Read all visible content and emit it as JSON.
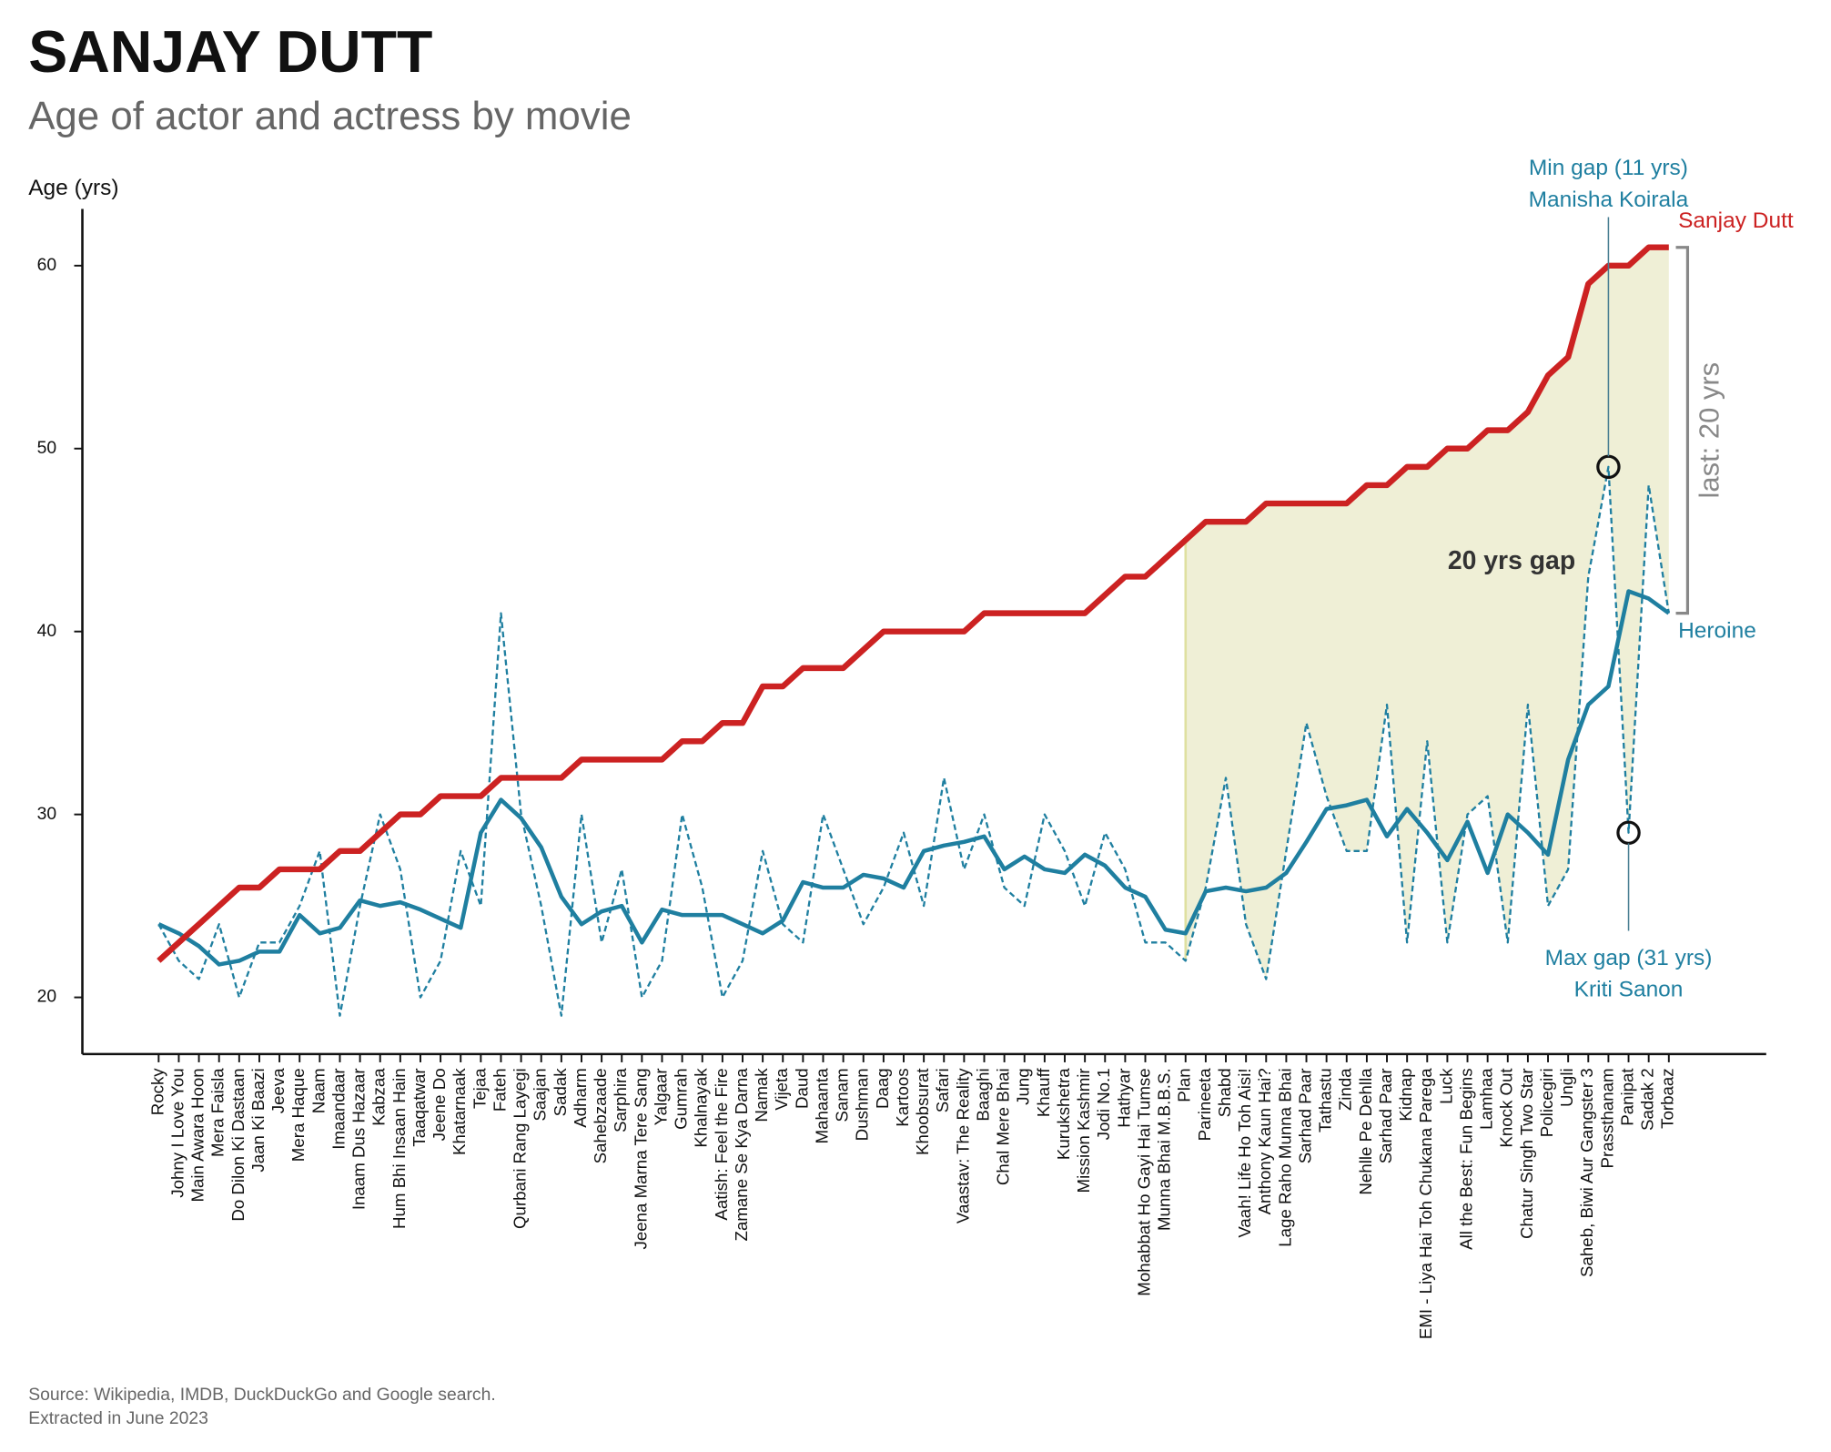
{
  "chart_data": {
    "type": "line",
    "title": "SANJAY DUTT",
    "subtitle": "Age of actor and actress by movie",
    "y_label": "Age (yrs)",
    "source": [
      "Source: Wikipedia, IMDB, DuckDuckGo and Google search.",
      "Extracted in June 2023"
    ],
    "categories": [
      "Rocky",
      "Johny I Love You",
      "Main Awara Hoon",
      "Mera Faisla",
      "Do Dilon Ki Dastaan",
      "Jaan Ki Baazi",
      "Jeeva",
      "Mera Haque",
      "Naam",
      "Imaandaar",
      "Inaam Dus Hazaar",
      "Kabzaa",
      "Hum Bhi Insaan Hain",
      "Taaqatwar",
      "Jeene Do",
      "Khatarnaak",
      "Tejaa",
      "Fateh",
      "Qurbani Rang Layegi",
      "Saajan",
      "Sadak",
      "Adharm",
      "Sahebzaade",
      "Sarphira",
      "Jeena Marna Tere Sang",
      "Yalgaar",
      "Gumrah",
      "Khalnayak",
      "Aatish: Feel the Fire",
      "Zamane Se Kya Darna",
      "Namak",
      "Vijeta",
      "Daud",
      "Mahaanta",
      "Sanam",
      "Dushman",
      "Daag",
      "Kartoos",
      "Khoobsurat",
      "Safari",
      "Vaastav: The Reality",
      "Baaghi",
      "Chal Mere Bhai",
      "Jung",
      "Khauff",
      "Kurukshetra",
      "Mission Kashmir",
      "Jodi No.1",
      "Hathyar",
      "Mohabbat Ho Gayi Hai Tumse",
      "Munna Bhai M.B.B.S.",
      "Plan",
      "Parineeta",
      "Shabd",
      "Vaah! Life Ho Toh Aisi!",
      "Anthony Kaun Hai?",
      "Lage Raho Munna Bhai",
      "Sarhad Paar",
      "Tathastu",
      "Zinda",
      "Nehlle Pe Dehlla",
      "Sarhad Paar",
      "Kidnap",
      "EMI - Liya Hai Toh Chukana Parega",
      "Luck",
      "All the Best: Fun Begins",
      "Lamhaa",
      "Knock Out",
      "Chatur Singh Two Star",
      "Policegiri",
      "Ungli",
      "Saheb, Biwi Aur Gangster 3",
      "Prassthanam",
      "Panipat",
      "Sadak 2",
      "Torbaaz"
    ],
    "series": [
      {
        "name": "Sanjay Dutt",
        "color": "#cc2222",
        "values": [
          22,
          23,
          24,
          25,
          26,
          26,
          27,
          27,
          27,
          28,
          28,
          29,
          30,
          30,
          31,
          31,
          31,
          32,
          32,
          32,
          32,
          33,
          33,
          33,
          33,
          33,
          34,
          34,
          35,
          35,
          37,
          37,
          38,
          38,
          38,
          39,
          40,
          40,
          40,
          40,
          40,
          41,
          41,
          41,
          41,
          41,
          41,
          42,
          43,
          43,
          44,
          45,
          46,
          46,
          46,
          47,
          47,
          47,
          47,
          47,
          48,
          48,
          49,
          49,
          50,
          50,
          51,
          51,
          52,
          54,
          55,
          59,
          60,
          60,
          61,
          61
        ]
      },
      {
        "name": "Heroine",
        "color": "#1f7fa0",
        "values": [
          24,
          23.5,
          22.8,
          21.8,
          22,
          22.5,
          22.5,
          24.5,
          23.5,
          23.8,
          25.3,
          25,
          25.2,
          24.8,
          24.3,
          23.8,
          29,
          30.8,
          29.8,
          28.2,
          25.5,
          24,
          24.7,
          25,
          23,
          24.8,
          24.5,
          24.5,
          24.5,
          24,
          23.5,
          24.2,
          26.3,
          26,
          26,
          26.7,
          26.5,
          26,
          28,
          28.3,
          28.5,
          28.8,
          27,
          27.7,
          27,
          26.8,
          27.8,
          27.2,
          26,
          25.5,
          23.7,
          23.5,
          25.8,
          26,
          25.8,
          26,
          26.8,
          28.5,
          30.3,
          30.5,
          30.8,
          28.8,
          30.3,
          29,
          27.5,
          29.6,
          26.8,
          30,
          29,
          27.8,
          33,
          36,
          37,
          42.2,
          41.8,
          41
        ]
      },
      {
        "color": "#1f7fa0",
        "dashed": true,
        "values": [
          24,
          22,
          21,
          24,
          20,
          23,
          23,
          25,
          28,
          19,
          25,
          30,
          27,
          20,
          22,
          28,
          25,
          41,
          30,
          25,
          19,
          30,
          23,
          27,
          20,
          22,
          30,
          26,
          20,
          22,
          28,
          24,
          23,
          30,
          27,
          24,
          26,
          29,
          25,
          32,
          27,
          30,
          26,
          25,
          30,
          28,
          25,
          29,
          27,
          23,
          23,
          22,
          26,
          32,
          24,
          21,
          28,
          35,
          31,
          28,
          28,
          36,
          23,
          34,
          23,
          30,
          31,
          23,
          36,
          25,
          27,
          43,
          49,
          29,
          48,
          41
        ]
      }
    ],
    "shade_color": "#efefd6",
    "shade_from_index": 51,
    "ylim": [
      16.9,
      63.1
    ],
    "yticks": [
      20,
      30,
      40,
      50,
      60
    ],
    "annotations": [
      {
        "text": [
          "Min gap (11 yrs)",
          "Manisha Koirala"
        ],
        "index": 72
      },
      {
        "text": [
          "Max gap (31 yrs)",
          "Kriti Sanon"
        ],
        "index": 73
      }
    ],
    "gap_label": "20 yrs gap",
    "last_gap_label": "last: 20 yrs"
  }
}
